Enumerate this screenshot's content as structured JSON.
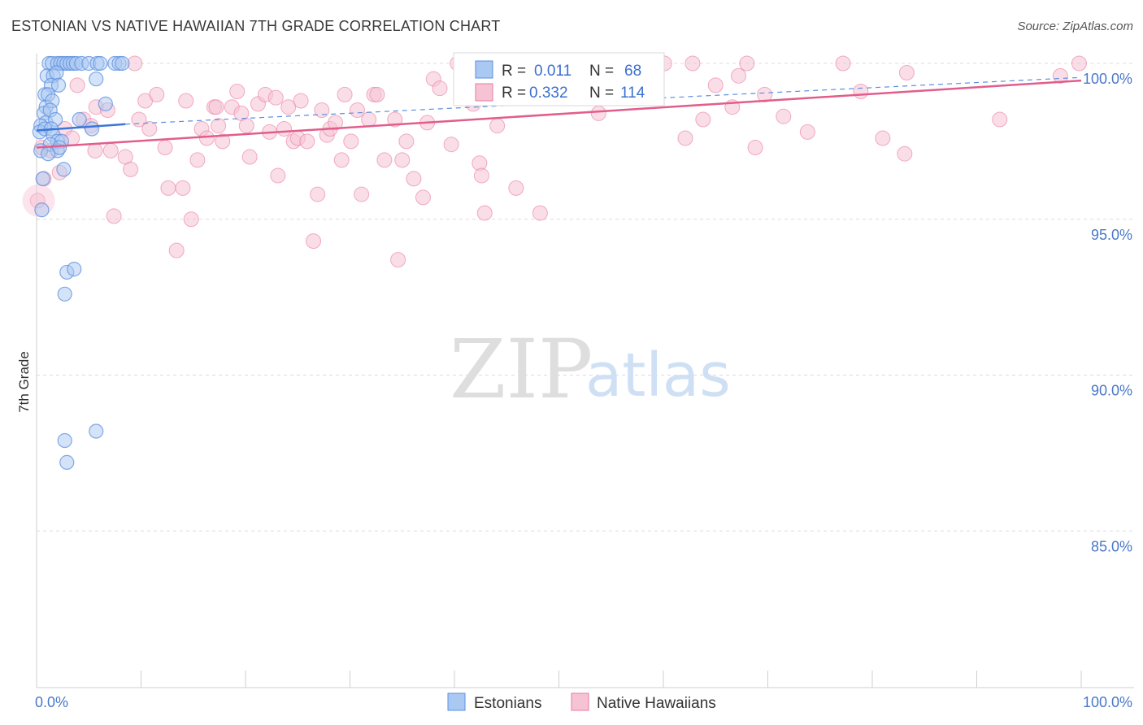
{
  "header": {
    "title": "ESTONIAN VS NATIVE HAWAIIAN 7TH GRADE CORRELATION CHART",
    "source": "Source: ZipAtlas.com"
  },
  "watermark": {
    "zip": "ZIP",
    "atlas": "atlas"
  },
  "colors": {
    "estonian": "#5b8fe0",
    "estonian_fill": "#a9c8f2",
    "hawaiian": "#ea7aa0",
    "hawaiian_fill": "#f6c3d4",
    "grid": "#dcdcdc",
    "tick_label": "#4a78c9"
  },
  "legend": {
    "rows": [
      {
        "r_label": "R =",
        "r_value": "0.011",
        "n_label": "N =",
        "n_value": "68"
      },
      {
        "r_label": "R =",
        "r_value": "0.332",
        "n_label": "N =",
        "n_value": "114"
      }
    ]
  },
  "bottom_legend": {
    "estonians": "Estonians",
    "hawaiians": "Native Hawaiians"
  },
  "chart_data": {
    "type": "scatter",
    "title": "ESTONIAN VS NATIVE HAWAIIAN 7TH GRADE CORRELATION CHART",
    "xlabel": "",
    "ylabel": "7th Grade",
    "xlim": [
      0,
      100
    ],
    "ylim": [
      80.5,
      100.7
    ],
    "x_tick_labels": [
      "0.0%",
      "100.0%"
    ],
    "y_ticks": [
      {
        "value": 100,
        "label": "100.0%"
      },
      {
        "value": 95,
        "label": "95.0%"
      },
      {
        "value": 90,
        "label": "90.0%"
      },
      {
        "value": 85,
        "label": "85.0%"
      }
    ],
    "series": [
      {
        "name": "Estonians",
        "R": 0.011,
        "N": 68,
        "trend": {
          "x": [
            0,
            8.5
          ],
          "y": [
            97.85,
            98.05
          ],
          "dashed_extension": {
            "x": [
              8.5,
              100
            ],
            "y": [
              98.05,
              99.55
            ]
          }
        },
        "points": [
          [
            1.2,
            100
          ],
          [
            1.5,
            100
          ],
          [
            2.0,
            100
          ],
          [
            2.3,
            100
          ],
          [
            2.6,
            100
          ],
          [
            2.9,
            100
          ],
          [
            3.2,
            100
          ],
          [
            3.5,
            100
          ],
          [
            3.8,
            100
          ],
          [
            4.3,
            100
          ],
          [
            5.0,
            100
          ],
          [
            5.8,
            100
          ],
          [
            6.1,
            100
          ],
          [
            7.5,
            100
          ],
          [
            7.9,
            100
          ],
          [
            8.2,
            100
          ],
          [
            1.0,
            99.6
          ],
          [
            1.6,
            99.6
          ],
          [
            1.9,
            99.7
          ],
          [
            1.4,
            99.3
          ],
          [
            2.1,
            99.3
          ],
          [
            5.7,
            99.5
          ],
          [
            0.8,
            99.0
          ],
          [
            1.1,
            99.0
          ],
          [
            0.9,
            98.6
          ],
          [
            1.5,
            98.8
          ],
          [
            0.7,
            98.4
          ],
          [
            1.3,
            98.5
          ],
          [
            0.9,
            98.1
          ],
          [
            0.4,
            98.0
          ],
          [
            1.8,
            98.2
          ],
          [
            0.3,
            97.8
          ],
          [
            0.8,
            97.9
          ],
          [
            1.4,
            97.9
          ],
          [
            1.6,
            97.7
          ],
          [
            2.0,
            97.5
          ],
          [
            2.4,
            97.5
          ],
          [
            1.3,
            97.4
          ],
          [
            2.0,
            97.2
          ],
          [
            0.4,
            97.2
          ],
          [
            1.1,
            97.1
          ],
          [
            2.2,
            97.3
          ],
          [
            4.1,
            98.2
          ],
          [
            5.3,
            97.9
          ],
          [
            6.6,
            98.7
          ],
          [
            2.6,
            96.6
          ],
          [
            0.6,
            96.3
          ],
          [
            0.5,
            95.3
          ],
          [
            2.9,
            93.3
          ],
          [
            3.6,
            93.4
          ],
          [
            2.7,
            92.6
          ],
          [
            5.7,
            88.2
          ],
          [
            2.7,
            87.9
          ],
          [
            2.9,
            87.2
          ]
        ]
      },
      {
        "name": "Native Hawaiians",
        "R": 0.332,
        "N": 114,
        "trend": {
          "x": [
            0,
            100
          ],
          "y": [
            97.3,
            99.45
          ]
        },
        "points": [
          [
            0.1,
            95.6
          ],
          [
            0.5,
            97.3
          ],
          [
            0.7,
            96.3
          ],
          [
            1.4,
            97.2
          ],
          [
            2.2,
            96.5
          ],
          [
            2.7,
            97.9
          ],
          [
            3.4,
            97.6
          ],
          [
            3.9,
            99.3
          ],
          [
            4.5,
            98.2
          ],
          [
            5.2,
            98.0
          ],
          [
            5.6,
            97.2
          ],
          [
            5.7,
            98.6
          ],
          [
            6.8,
            98.5
          ],
          [
            7.1,
            97.2
          ],
          [
            8.5,
            97.0
          ],
          [
            9.0,
            96.6
          ],
          [
            7.4,
            95.1
          ],
          [
            9.4,
            100
          ],
          [
            9.8,
            98.2
          ],
          [
            10.4,
            98.8
          ],
          [
            10.8,
            97.9
          ],
          [
            11.5,
            99.0
          ],
          [
            12.3,
            97.3
          ],
          [
            12.6,
            96.0
          ],
          [
            13.4,
            94.0
          ],
          [
            14.0,
            96.0
          ],
          [
            14.3,
            98.8
          ],
          [
            14.8,
            95.0
          ],
          [
            15.4,
            96.9
          ],
          [
            15.8,
            97.9
          ],
          [
            16.3,
            97.6
          ],
          [
            17.0,
            98.6
          ],
          [
            17.2,
            98.6
          ],
          [
            17.4,
            98.0
          ],
          [
            17.8,
            97.5
          ],
          [
            18.7,
            98.6
          ],
          [
            19.2,
            99.1
          ],
          [
            19.6,
            98.4
          ],
          [
            20.1,
            98.0
          ],
          [
            20.4,
            97.0
          ],
          [
            21.2,
            98.7
          ],
          [
            21.9,
            99.0
          ],
          [
            22.3,
            97.8
          ],
          [
            22.9,
            98.9
          ],
          [
            23.1,
            96.4
          ],
          [
            23.7,
            97.9
          ],
          [
            24.1,
            98.6
          ],
          [
            24.6,
            97.5
          ],
          [
            25.0,
            97.6
          ],
          [
            25.3,
            98.8
          ],
          [
            25.9,
            97.5
          ],
          [
            26.5,
            94.3
          ],
          [
            26.9,
            95.8
          ],
          [
            27.3,
            98.5
          ],
          [
            27.8,
            97.7
          ],
          [
            28.1,
            97.9
          ],
          [
            28.6,
            98.1
          ],
          [
            29.2,
            96.9
          ],
          [
            29.5,
            99.0
          ],
          [
            30.1,
            97.5
          ],
          [
            30.7,
            98.5
          ],
          [
            31.1,
            95.8
          ],
          [
            31.8,
            98.2
          ],
          [
            32.3,
            99.0
          ],
          [
            32.6,
            99.0
          ],
          [
            33.3,
            96.9
          ],
          [
            34.3,
            98.2
          ],
          [
            34.6,
            93.7
          ],
          [
            35.0,
            96.9
          ],
          [
            35.4,
            97.5
          ],
          [
            36.1,
            96.3
          ],
          [
            37.0,
            95.7
          ],
          [
            37.4,
            98.1
          ],
          [
            38.0,
            99.5
          ],
          [
            38.6,
            99.2
          ],
          [
            39.7,
            97.4
          ],
          [
            40.3,
            100
          ],
          [
            41.8,
            98.7
          ],
          [
            42.4,
            96.8
          ],
          [
            42.6,
            96.4
          ],
          [
            42.9,
            95.2
          ],
          [
            43.3,
            99.2
          ],
          [
            44.1,
            98.0
          ],
          [
            44.8,
            99.3
          ],
          [
            45.9,
            96.0
          ],
          [
            46.3,
            100
          ],
          [
            47.3,
            99.3
          ],
          [
            48.2,
            95.2
          ],
          [
            52.8,
            99.8
          ],
          [
            53.8,
            98.4
          ],
          [
            55.7,
            99.5
          ],
          [
            57.8,
            100
          ],
          [
            60.1,
            100
          ],
          [
            62.1,
            97.6
          ],
          [
            62.8,
            100
          ],
          [
            63.8,
            98.2
          ],
          [
            65.0,
            99.3
          ],
          [
            66.6,
            98.6
          ],
          [
            67.2,
            99.6
          ],
          [
            68.0,
            100
          ],
          [
            68.8,
            97.3
          ],
          [
            69.7,
            99.0
          ],
          [
            71.5,
            98.3
          ],
          [
            73.8,
            97.8
          ],
          [
            77.2,
            100
          ],
          [
            78.9,
            99.1
          ],
          [
            81.0,
            97.6
          ],
          [
            83.1,
            97.1
          ],
          [
            83.3,
            99.7
          ],
          [
            92.2,
            98.2
          ],
          [
            99.8,
            100
          ],
          [
            98.0,
            99.6
          ]
        ]
      }
    ]
  }
}
